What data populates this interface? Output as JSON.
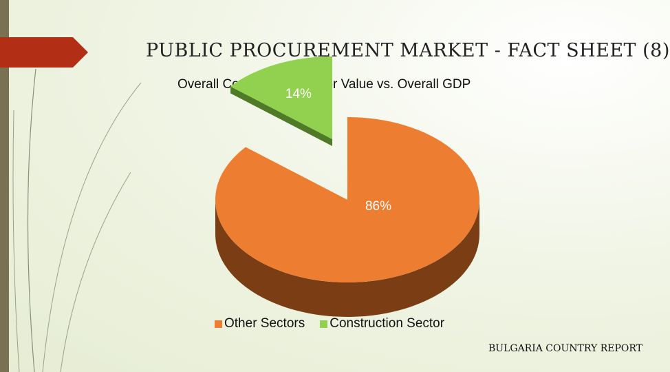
{
  "slide": {
    "title": "PUBLIC PROCUREMENT MARKET - FACT SHEET (8)",
    "footer": "BULGARIA COUNTRY REPORT"
  },
  "colors": {
    "accent_arrow": "#b22e15",
    "other_top": "#ed7d31",
    "other_side": "#7a3d14",
    "construction_top": "#92d050",
    "construction_side": "#4f7a27"
  },
  "chart_data": {
    "type": "pie",
    "title": "Overall Construction Sector Value vs. Overall GDP",
    "categories": [
      "Other Sectors",
      "Construction Sector"
    ],
    "values": [
      86,
      14
    ],
    "labels": [
      "86%",
      "14%"
    ],
    "style": "3d-exploded",
    "legend": "bottom"
  }
}
